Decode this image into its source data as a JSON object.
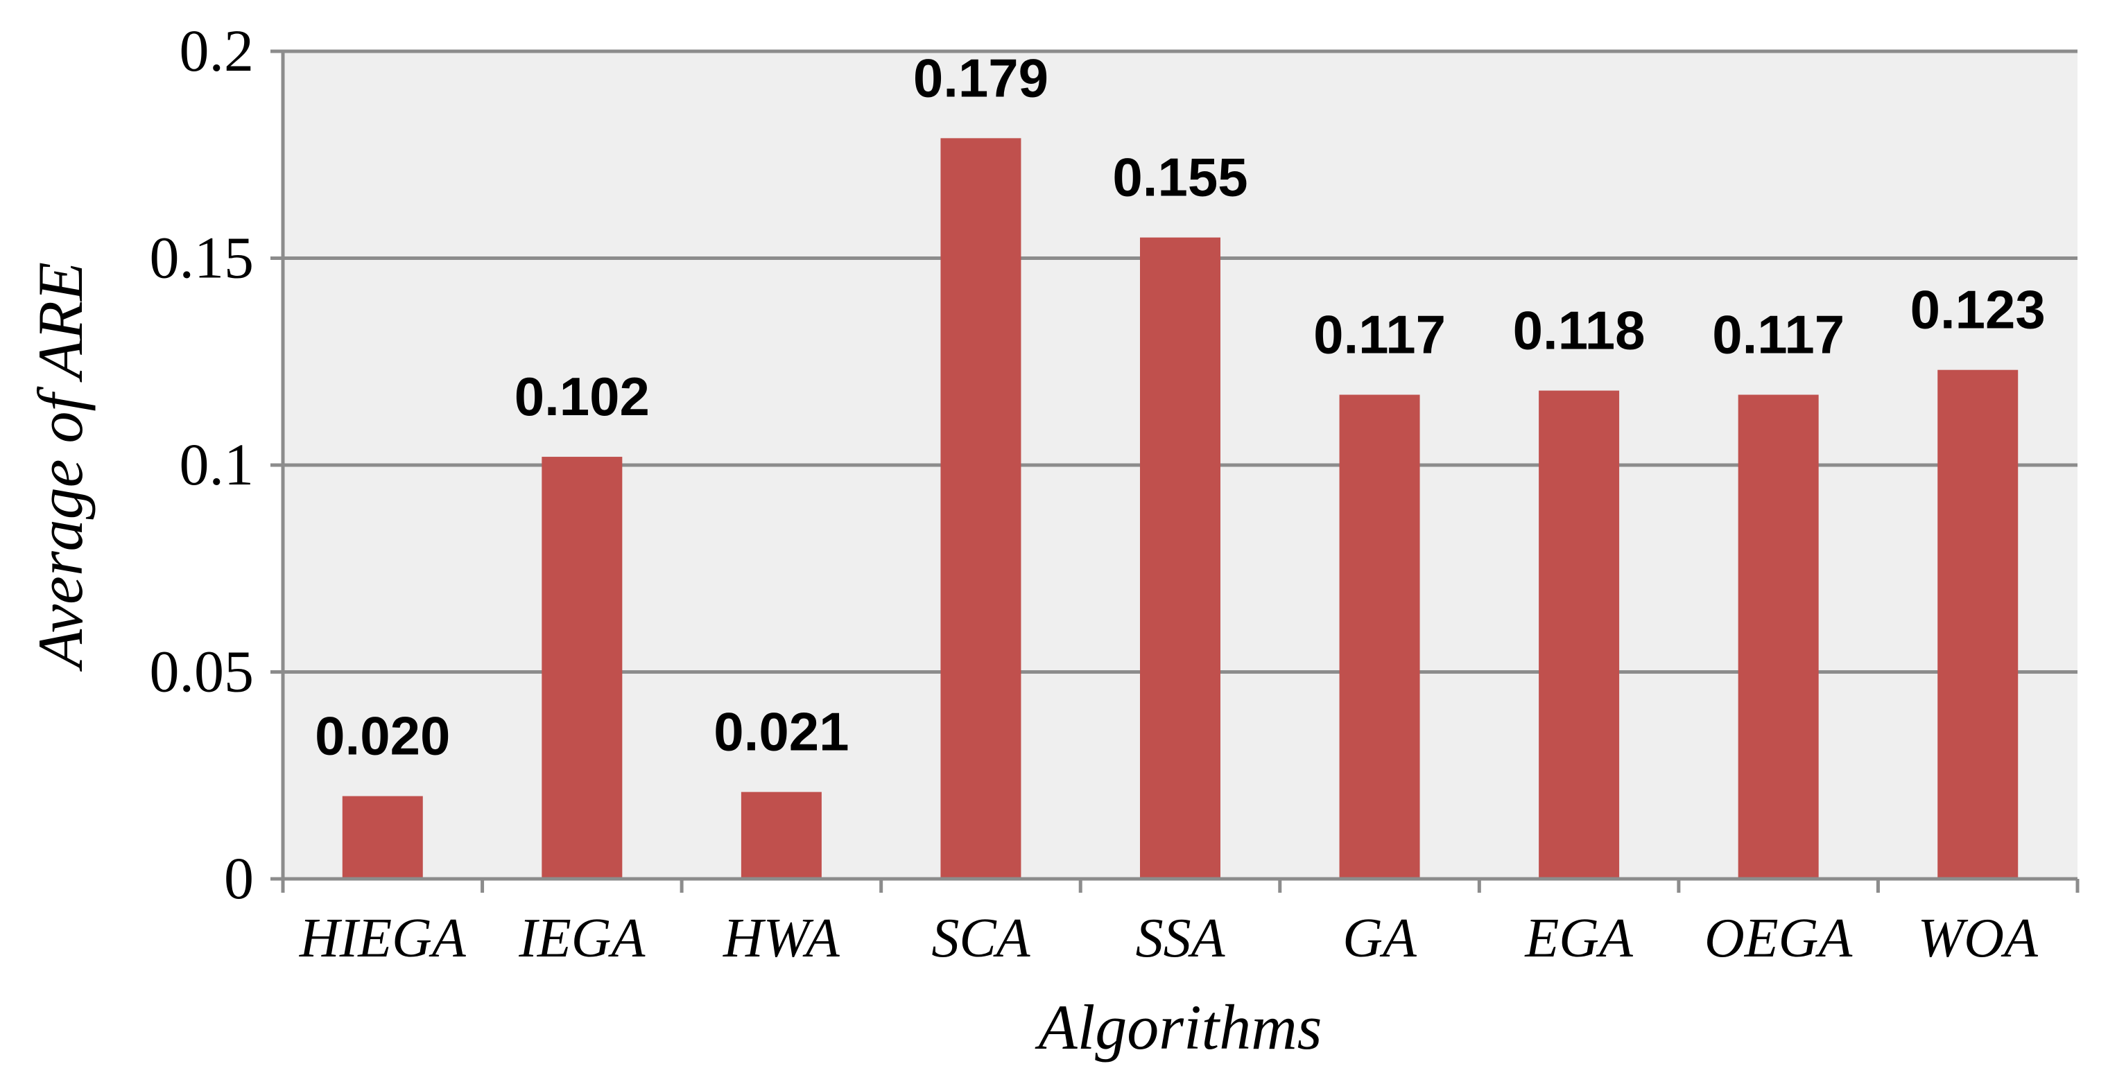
{
  "chart_data": {
    "type": "bar",
    "categories": [
      "HIEGA",
      "IEGA",
      "HWA",
      "SCA",
      "SSA",
      "GA",
      "EGA",
      "OEGA",
      "WOA"
    ],
    "values": [
      0.02,
      0.102,
      0.021,
      0.179,
      0.155,
      0.117,
      0.118,
      0.117,
      0.123
    ],
    "data_labels": [
      "0.020",
      "0.102",
      "0.021",
      "0.179",
      "0.155",
      "0.117",
      "0.118",
      "0.117",
      "0.123"
    ],
    "xlabel": "Algorithms",
    "ylabel": "Average of ARE",
    "ylim": [
      0,
      0.2
    ],
    "yticks": [
      0,
      0.05,
      0.1,
      0.15,
      0.2
    ],
    "ytick_labels": [
      "0",
      "0.05",
      "0.1",
      "0.15",
      "0.2"
    ],
    "grid": true,
    "legend": "none",
    "bar_color": "#c0504d",
    "plot_background": "#efefef",
    "gridline_color": "#8c8c8c"
  }
}
